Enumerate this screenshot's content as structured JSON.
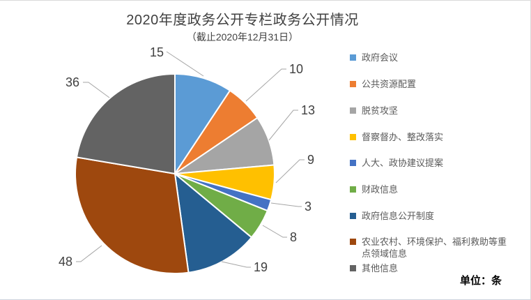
{
  "title": "2020年度政务公开专栏政务公开情况",
  "subtitle": "（截止2020年12月31日）",
  "unit_note": "单位：条",
  "chart_data": {
    "type": "pie",
    "title": "2020年度政务公开专栏政务公开情况",
    "subtitle": "（截止2020年12月31日）",
    "unit": "条",
    "total": 161,
    "legend_position": "right",
    "data_labels": true,
    "label_color": "#404040",
    "leader_line_color": "#A6A6A6",
    "series": [
      {
        "name": "政府会议",
        "value": 15,
        "color": "#5B9BD5"
      },
      {
        "name": "公共资源配置",
        "value": 10,
        "color": "#ED7D31"
      },
      {
        "name": "脱贫攻坚",
        "value": 13,
        "color": "#A5A5A5"
      },
      {
        "name": "督察督办、整改落实",
        "value": 9,
        "color": "#FFC000"
      },
      {
        "name": "人大、政协建议提案",
        "value": 3,
        "color": "#4472C4"
      },
      {
        "name": "财政信息",
        "value": 8,
        "color": "#70AD47"
      },
      {
        "name": "政府信息公开制度",
        "value": 19,
        "color": "#255E91"
      },
      {
        "name": "农业农村、环境保护、福利救助等重点领域信息",
        "value": 48,
        "color": "#9E480E"
      },
      {
        "name": "其他信息",
        "value": 36,
        "color": "#636363"
      }
    ]
  }
}
